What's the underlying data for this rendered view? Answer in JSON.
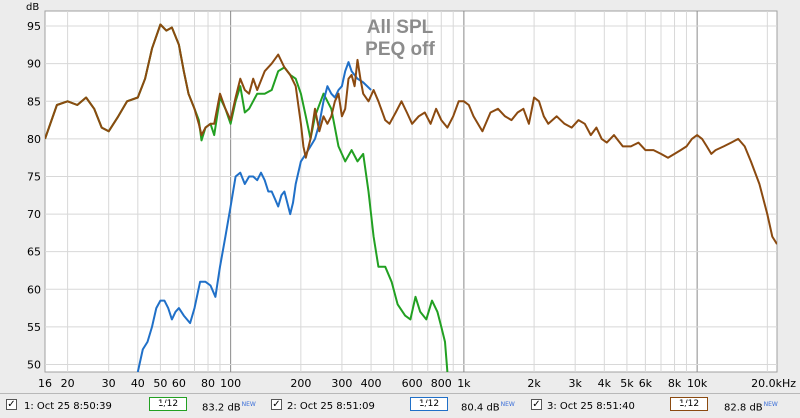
{
  "chart_data": {
    "type": "line",
    "yunit": "dB",
    "annotation": [
      "All SPL",
      "PEQ off"
    ],
    "xscale": "log",
    "xlim": [
      16,
      22000
    ],
    "ylim": [
      49,
      97
    ],
    "grid": true,
    "yticks": [
      50,
      55,
      60,
      65,
      70,
      75,
      80,
      85,
      90,
      95
    ],
    "xticks": [
      {
        "v": 16,
        "label": "16"
      },
      {
        "v": 20,
        "label": "20"
      },
      {
        "v": 30,
        "label": "30"
      },
      {
        "v": 40,
        "label": "40"
      },
      {
        "v": 50,
        "label": "50"
      },
      {
        "v": 60,
        "label": "60"
      },
      {
        "v": 80,
        "label": "80"
      },
      {
        "v": 100,
        "label": "100"
      },
      {
        "v": 200,
        "label": "200"
      },
      {
        "v": 300,
        "label": "300"
      },
      {
        "v": 400,
        "label": "400"
      },
      {
        "v": 600,
        "label": "600"
      },
      {
        "v": 800,
        "label": "800"
      },
      {
        "v": 1000,
        "label": "1k"
      },
      {
        "v": 2000,
        "label": "2k"
      },
      {
        "v": 3000,
        "label": "3k"
      },
      {
        "v": 4000,
        "label": "4k"
      },
      {
        "v": 5000,
        "label": "5k"
      },
      {
        "v": 6000,
        "label": "6k"
      },
      {
        "v": 8000,
        "label": "8k"
      },
      {
        "v": 10000,
        "label": "10k"
      },
      {
        "v": 20000,
        "label": "20.0kHz"
      }
    ],
    "series": [
      {
        "name": "1: Oct 25 8:50:39",
        "smoothing": "1/12",
        "spl": "83.2 dB",
        "badge": "NEW",
        "color": "#22a022",
        "points": [
          [
            16,
            80
          ],
          [
            18,
            84.5
          ],
          [
            20,
            85
          ],
          [
            22,
            84.5
          ],
          [
            24,
            85.5
          ],
          [
            26,
            84
          ],
          [
            28,
            81.5
          ],
          [
            30,
            81
          ],
          [
            33,
            83
          ],
          [
            36,
            85
          ],
          [
            40,
            85.5
          ],
          [
            43,
            88
          ],
          [
            46,
            92
          ],
          [
            50,
            95.2
          ],
          [
            53,
            94.4
          ],
          [
            56,
            94.8
          ],
          [
            60,
            92.5
          ],
          [
            63,
            89
          ],
          [
            66,
            86
          ],
          [
            70,
            84
          ],
          [
            73,
            82.5
          ],
          [
            75,
            79.8
          ],
          [
            78,
            81.5
          ],
          [
            82,
            82
          ],
          [
            85,
            80.5
          ],
          [
            90,
            85.5
          ],
          [
            95,
            84
          ],
          [
            100,
            82
          ],
          [
            105,
            85
          ],
          [
            110,
            87
          ],
          [
            115,
            83.5
          ],
          [
            120,
            84
          ],
          [
            130,
            86
          ],
          [
            140,
            86
          ],
          [
            150,
            86.5
          ],
          [
            160,
            89
          ],
          [
            170,
            89.5
          ],
          [
            180,
            88.5
          ],
          [
            190,
            88
          ],
          [
            200,
            86
          ],
          [
            210,
            83
          ],
          [
            220,
            80
          ],
          [
            230,
            83
          ],
          [
            250,
            86
          ],
          [
            270,
            84
          ],
          [
            290,
            79
          ],
          [
            310,
            77
          ],
          [
            330,
            78.5
          ],
          [
            350,
            77
          ],
          [
            370,
            78
          ],
          [
            390,
            73
          ],
          [
            410,
            67
          ],
          [
            430,
            63
          ],
          [
            460,
            63
          ],
          [
            490,
            61
          ],
          [
            520,
            58
          ],
          [
            560,
            56.5
          ],
          [
            590,
            56
          ],
          [
            620,
            59
          ],
          [
            650,
            57
          ],
          [
            690,
            56
          ],
          [
            730,
            58.5
          ],
          [
            770,
            57
          ],
          [
            800,
            55
          ],
          [
            830,
            53
          ],
          [
            850,
            49
          ]
        ]
      },
      {
        "name": "2: Oct 25 8:51:09",
        "smoothing": "1/12",
        "spl": "80.4 dB",
        "badge": "NEW",
        "color": "#2070c8",
        "points": [
          [
            40,
            49
          ],
          [
            42,
            52
          ],
          [
            44,
            53
          ],
          [
            46,
            55
          ],
          [
            48,
            57.5
          ],
          [
            50,
            58.5
          ],
          [
            52,
            58.5
          ],
          [
            54,
            57.5
          ],
          [
            56,
            56
          ],
          [
            58,
            57
          ],
          [
            60,
            57.5
          ],
          [
            63,
            56.5
          ],
          [
            67,
            55.5
          ],
          [
            70,
            57.5
          ],
          [
            74,
            61
          ],
          [
            78,
            61
          ],
          [
            82,
            60.5
          ],
          [
            86,
            59
          ],
          [
            90,
            63
          ],
          [
            95,
            67
          ],
          [
            100,
            71
          ],
          [
            105,
            75
          ],
          [
            110,
            75.5
          ],
          [
            115,
            74
          ],
          [
            120,
            75
          ],
          [
            125,
            75
          ],
          [
            130,
            74.5
          ],
          [
            135,
            75.5
          ],
          [
            140,
            74.5
          ],
          [
            145,
            73
          ],
          [
            150,
            73
          ],
          [
            155,
            72
          ],
          [
            160,
            71
          ],
          [
            165,
            72.5
          ],
          [
            170,
            73
          ],
          [
            175,
            71.5
          ],
          [
            180,
            70
          ],
          [
            185,
            71.5
          ],
          [
            190,
            74
          ],
          [
            200,
            77
          ],
          [
            210,
            78
          ],
          [
            220,
            79
          ],
          [
            230,
            80
          ],
          [
            240,
            82
          ],
          [
            250,
            85
          ],
          [
            260,
            87
          ],
          [
            270,
            86
          ],
          [
            280,
            85.5
          ],
          [
            290,
            86.5
          ],
          [
            300,
            87
          ],
          [
            310,
            89
          ],
          [
            320,
            90.2
          ],
          [
            330,
            89
          ],
          [
            350,
            88
          ],
          [
            370,
            87.5
          ],
          [
            400,
            86.5
          ]
        ]
      },
      {
        "name": "3: Oct 25 8:51:40",
        "smoothing": "1/12",
        "spl": "82.8 dB",
        "badge": "NEW",
        "color": "#8b4a10",
        "points": [
          [
            16,
            80
          ],
          [
            18,
            84.5
          ],
          [
            20,
            85
          ],
          [
            22,
            84.5
          ],
          [
            24,
            85.5
          ],
          [
            26,
            84
          ],
          [
            28,
            81.5
          ],
          [
            30,
            81
          ],
          [
            33,
            83
          ],
          [
            36,
            85
          ],
          [
            40,
            85.5
          ],
          [
            43,
            88
          ],
          [
            46,
            92
          ],
          [
            50,
            95.2
          ],
          [
            53,
            94.4
          ],
          [
            56,
            94.8
          ],
          [
            60,
            92.5
          ],
          [
            63,
            89
          ],
          [
            66,
            86
          ],
          [
            70,
            84
          ],
          [
            73,
            82
          ],
          [
            75,
            80.5
          ],
          [
            78,
            81.5
          ],
          [
            82,
            82
          ],
          [
            85,
            82
          ],
          [
            90,
            86
          ],
          [
            95,
            84
          ],
          [
            100,
            82.5
          ],
          [
            105,
            85.5
          ],
          [
            110,
            88
          ],
          [
            115,
            86.5
          ],
          [
            120,
            86
          ],
          [
            125,
            88
          ],
          [
            130,
            86.5
          ],
          [
            140,
            89
          ],
          [
            150,
            90
          ],
          [
            160,
            91.2
          ],
          [
            170,
            89.5
          ],
          [
            180,
            88.5
          ],
          [
            190,
            87
          ],
          [
            200,
            82
          ],
          [
            205,
            79
          ],
          [
            210,
            77.5
          ],
          [
            220,
            80
          ],
          [
            230,
            84
          ],
          [
            240,
            81
          ],
          [
            250,
            83
          ],
          [
            260,
            82
          ],
          [
            270,
            83
          ],
          [
            280,
            85
          ],
          [
            290,
            86
          ],
          [
            300,
            83
          ],
          [
            310,
            84
          ],
          [
            320,
            88
          ],
          [
            330,
            88.5
          ],
          [
            340,
            87
          ],
          [
            350,
            90.5
          ],
          [
            360,
            88
          ],
          [
            370,
            86
          ],
          [
            390,
            85
          ],
          [
            410,
            86.5
          ],
          [
            430,
            85
          ],
          [
            460,
            82.5
          ],
          [
            480,
            82
          ],
          [
            510,
            83.5
          ],
          [
            540,
            85
          ],
          [
            570,
            83.5
          ],
          [
            600,
            82
          ],
          [
            640,
            83
          ],
          [
            680,
            83.5
          ],
          [
            720,
            82
          ],
          [
            760,
            84
          ],
          [
            800,
            82.5
          ],
          [
            850,
            81.5
          ],
          [
            900,
            83
          ],
          [
            950,
            85
          ],
          [
            1000,
            85
          ],
          [
            1050,
            84.5
          ],
          [
            1100,
            83
          ],
          [
            1200,
            81
          ],
          [
            1300,
            83.5
          ],
          [
            1400,
            84
          ],
          [
            1500,
            83
          ],
          [
            1600,
            82.5
          ],
          [
            1700,
            83.5
          ],
          [
            1800,
            84
          ],
          [
            1900,
            82
          ],
          [
            2000,
            85.5
          ],
          [
            2100,
            85
          ],
          [
            2200,
            83
          ],
          [
            2300,
            82
          ],
          [
            2500,
            83
          ],
          [
            2700,
            82
          ],
          [
            2900,
            81.5
          ],
          [
            3100,
            82.5
          ],
          [
            3300,
            82
          ],
          [
            3500,
            80.5
          ],
          [
            3700,
            81.5
          ],
          [
            3900,
            80
          ],
          [
            4100,
            79.5
          ],
          [
            4400,
            80.5
          ],
          [
            4800,
            79
          ],
          [
            5200,
            79
          ],
          [
            5600,
            79.5
          ],
          [
            6000,
            78.5
          ],
          [
            6500,
            78.5
          ],
          [
            7000,
            78
          ],
          [
            7500,
            77.5
          ],
          [
            8000,
            78
          ],
          [
            8500,
            78.5
          ],
          [
            9000,
            79
          ],
          [
            9500,
            80
          ],
          [
            10000,
            80.5
          ],
          [
            10500,
            80
          ],
          [
            11000,
            79
          ],
          [
            11500,
            78
          ],
          [
            12000,
            78.5
          ],
          [
            13000,
            79
          ],
          [
            14000,
            79.5
          ],
          [
            15000,
            80
          ],
          [
            16000,
            79
          ],
          [
            17000,
            77
          ],
          [
            18500,
            74
          ],
          [
            20000,
            70
          ],
          [
            21000,
            67
          ],
          [
            22000,
            66
          ]
        ]
      }
    ]
  }
}
